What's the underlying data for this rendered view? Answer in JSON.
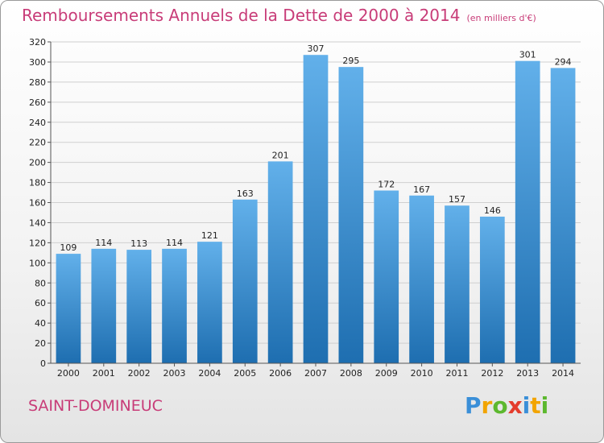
{
  "title": "Remboursements Annuels de la Dette de 2000 à 2014",
  "subtitle": "(en milliers d'€)",
  "commune": "SAINT-DOMINEUC",
  "brand": {
    "letters": [
      "P",
      "r",
      "o",
      "x",
      "i",
      "t",
      "i"
    ],
    "colors": [
      "#3a8fd8",
      "#f2a400",
      "#5cb82e",
      "#e43c2c",
      "#3a8fd8",
      "#f2a400",
      "#5cb82e"
    ]
  },
  "colors": {
    "bar_top": "#62b0ea",
    "bar_bottom": "#1e6eb0",
    "title": "#c83c78"
  },
  "chart_data": {
    "type": "bar",
    "title": "Remboursements Annuels de la Dette de 2000 à 2014",
    "xlabel": "",
    "ylabel": "",
    "categories": [
      "2000",
      "2001",
      "2002",
      "2003",
      "2004",
      "2005",
      "2006",
      "2007",
      "2008",
      "2009",
      "2010",
      "2011",
      "2012",
      "2013",
      "2014"
    ],
    "values": [
      109,
      114,
      113,
      114,
      121,
      163,
      201,
      307,
      295,
      172,
      167,
      157,
      146,
      301,
      294
    ],
    "ylim": [
      0,
      320
    ],
    "yticks": [
      0,
      20,
      40,
      60,
      80,
      100,
      120,
      140,
      160,
      180,
      200,
      220,
      240,
      260,
      280,
      300,
      320
    ],
    "grid": true,
    "legend": "none"
  }
}
